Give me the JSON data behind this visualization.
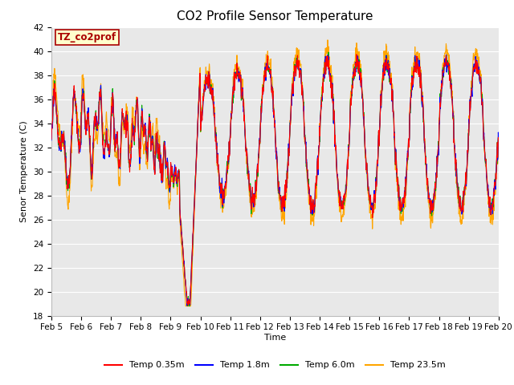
{
  "title": "CO2 Profile Sensor Temperature",
  "ylabel": "Senor Temperature (C)",
  "xlabel": "Time",
  "annotation": "TZ_co2prof",
  "ylim": [
    18,
    42
  ],
  "yticks": [
    18,
    20,
    22,
    24,
    26,
    28,
    30,
    32,
    34,
    36,
    38,
    40,
    42
  ],
  "xlim_days": [
    0,
    15
  ],
  "xtick_labels": [
    "Feb 5",
    "Feb 6",
    "Feb 7",
    "Feb 8",
    "Feb 9",
    "Feb 10",
    "Feb 11",
    "Feb 12",
    "Feb 13",
    "Feb 14",
    "Feb 15",
    "Feb 16",
    "Feb 17",
    "Feb 18",
    "Feb 19",
    "Feb 20"
  ],
  "colors": {
    "red": "#FF0000",
    "blue": "#0000FF",
    "green": "#00AA00",
    "orange": "#FFA500",
    "bg": "#E8E8E8",
    "fig_bg": "#FFFFFF",
    "annotation_bg": "#FFFFCC",
    "annotation_border": "#AA0000"
  },
  "legend_labels": [
    "Temp 0.35m",
    "Temp 1.8m",
    "Temp 6.0m",
    "Temp 23.5m"
  ],
  "title_fontsize": 11,
  "axis_fontsize": 8,
  "tick_fontsize": 7.5,
  "lw": 0.8
}
